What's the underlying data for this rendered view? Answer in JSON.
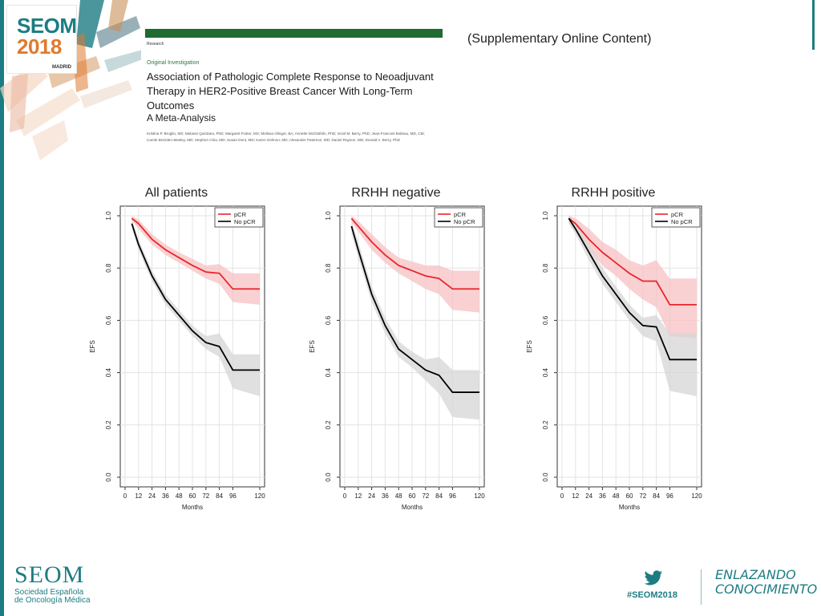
{
  "brand": {
    "logo_top": "SEOM",
    "logo_year": "2018",
    "logo_city": "MADRID"
  },
  "paper": {
    "research": "Research",
    "kicker": "Original Investigation",
    "title": "Association of Pathologic Complete Response to Neoadjuvant Therapy in HER2-Positive Breast Cancer With Long-Term Outcomes",
    "subtitle": "A Meta-Analysis",
    "authors": "Kristina P. Broglio, MS; Melanie Quintana, PhD; Margaret Foster, MS; Melissa Olinger, BA; Annette McGlothlin, PhD; Scott M. Berry, PhD; Jean-Francois Boileau, MD, CM; Carole Brezden-Masley, MD; Stephen Chia, MD; Susan Dent, MD; Karen Gelmon, MD; Alexander Paterson, MD; Daniel Rayson, MD; Donald A. Berry, PhD"
  },
  "supplementary": "(Supplementary Online Content)",
  "colors": {
    "teal": "#1d7c83",
    "orange": "#e07a2e",
    "pcr_line": "#e8262d",
    "pcr_band": "#f7c1c3",
    "nopcr_line": "#000000",
    "nopcr_band": "#d6d6d6"
  },
  "chart_data": [
    {
      "type": "line",
      "title": "All patients",
      "xlabel": "Months",
      "ylabel": "EFS",
      "xlim": [
        0,
        120
      ],
      "ylim": [
        0,
        1.0
      ],
      "xticks": [
        0,
        12,
        24,
        36,
        48,
        60,
        72,
        84,
        96,
        120
      ],
      "yticks": [
        "0.0",
        "0.2",
        "0.4",
        "0.6",
        "0.8",
        "1.0"
      ],
      "legend": [
        "pCR",
        "No pCR"
      ],
      "legend_position": "top-right",
      "series": [
        {
          "name": "pCR",
          "x": [
            6,
            12,
            24,
            36,
            48,
            60,
            72,
            84,
            96,
            120
          ],
          "y": [
            0.99,
            0.97,
            0.91,
            0.87,
            0.84,
            0.81,
            0.785,
            0.78,
            0.72,
            0.72
          ],
          "lower": [
            0.98,
            0.95,
            0.89,
            0.85,
            0.82,
            0.79,
            0.76,
            0.74,
            0.67,
            0.66
          ],
          "upper": [
            1.0,
            0.985,
            0.93,
            0.89,
            0.86,
            0.835,
            0.81,
            0.815,
            0.78,
            0.78
          ]
        },
        {
          "name": "No pCR",
          "x": [
            6,
            12,
            24,
            36,
            48,
            60,
            72,
            84,
            96,
            120
          ],
          "y": [
            0.97,
            0.89,
            0.77,
            0.68,
            0.62,
            0.56,
            0.515,
            0.5,
            0.41,
            0.41
          ],
          "lower": [
            0.95,
            0.87,
            0.75,
            0.66,
            0.6,
            0.54,
            0.49,
            0.46,
            0.34,
            0.31
          ],
          "upper": [
            0.985,
            0.91,
            0.79,
            0.7,
            0.64,
            0.58,
            0.54,
            0.55,
            0.47,
            0.47
          ]
        }
      ]
    },
    {
      "type": "line",
      "title": "RRHH negative",
      "xlabel": "Months",
      "ylabel": "EFS",
      "xlim": [
        0,
        120
      ],
      "ylim": [
        0,
        1.0
      ],
      "xticks": [
        0,
        12,
        24,
        36,
        48,
        60,
        72,
        84,
        96,
        120
      ],
      "yticks": [
        "0.0",
        "0.2",
        "0.4",
        "0.6",
        "0.8",
        "1.0"
      ],
      "legend": [
        "pCR",
        "No pCR"
      ],
      "legend_position": "top-right",
      "series": [
        {
          "name": "pCR",
          "x": [
            6,
            12,
            24,
            36,
            48,
            60,
            72,
            84,
            96,
            120
          ],
          "y": [
            0.99,
            0.96,
            0.9,
            0.85,
            0.81,
            0.79,
            0.77,
            0.76,
            0.72,
            0.72
          ],
          "lower": [
            0.975,
            0.94,
            0.87,
            0.82,
            0.78,
            0.75,
            0.72,
            0.7,
            0.64,
            0.63
          ],
          "upper": [
            1.0,
            0.98,
            0.93,
            0.88,
            0.84,
            0.825,
            0.81,
            0.81,
            0.79,
            0.79
          ]
        },
        {
          "name": "No pCR",
          "x": [
            6,
            12,
            24,
            36,
            48,
            60,
            72,
            84,
            96,
            120
          ],
          "y": [
            0.96,
            0.87,
            0.7,
            0.58,
            0.49,
            0.45,
            0.41,
            0.39,
            0.325,
            0.325
          ],
          "lower": [
            0.93,
            0.84,
            0.67,
            0.55,
            0.46,
            0.42,
            0.37,
            0.32,
            0.23,
            0.22
          ],
          "upper": [
            0.98,
            0.9,
            0.73,
            0.61,
            0.52,
            0.48,
            0.45,
            0.46,
            0.41,
            0.41
          ]
        }
      ]
    },
    {
      "type": "line",
      "title": "RRHH positive",
      "xlabel": "Months",
      "ylabel": "EFS",
      "xlim": [
        0,
        120
      ],
      "ylim": [
        0,
        1.0
      ],
      "xticks": [
        0,
        12,
        24,
        36,
        48,
        60,
        72,
        84,
        96,
        120
      ],
      "yticks": [
        "0.0",
        "0.2",
        "0.4",
        "0.6",
        "0.8",
        "1.0"
      ],
      "legend": [
        "pCR",
        "No pCR"
      ],
      "legend_position": "top-right",
      "series": [
        {
          "name": "pCR",
          "x": [
            6,
            12,
            24,
            36,
            48,
            60,
            72,
            84,
            96,
            120
          ],
          "y": [
            0.99,
            0.97,
            0.91,
            0.86,
            0.82,
            0.78,
            0.75,
            0.75,
            0.66,
            0.66
          ],
          "lower": [
            0.97,
            0.94,
            0.87,
            0.81,
            0.77,
            0.72,
            0.68,
            0.65,
            0.54,
            0.53
          ],
          "upper": [
            1.0,
            0.99,
            0.95,
            0.9,
            0.87,
            0.83,
            0.81,
            0.83,
            0.76,
            0.76
          ]
        },
        {
          "name": "No pCR",
          "x": [
            6,
            12,
            24,
            36,
            48,
            60,
            72,
            84,
            96,
            120
          ],
          "y": [
            0.99,
            0.95,
            0.86,
            0.77,
            0.7,
            0.63,
            0.58,
            0.575,
            0.45,
            0.45
          ],
          "lower": [
            0.97,
            0.93,
            0.83,
            0.74,
            0.67,
            0.6,
            0.54,
            0.52,
            0.33,
            0.31
          ],
          "upper": [
            1.0,
            0.97,
            0.89,
            0.8,
            0.73,
            0.66,
            0.61,
            0.62,
            0.55,
            0.55
          ]
        }
      ]
    }
  ],
  "footer": {
    "seom": "SEOM",
    "society_line1": "Sociedad Española",
    "society_line2": "de Oncología Médica",
    "hashtag": "#SEOM2018",
    "slogan_line1": "ENLAZANDO",
    "slogan_line2": "CONOCIMIENTO",
    "icon": "twitter-bird-icon"
  }
}
